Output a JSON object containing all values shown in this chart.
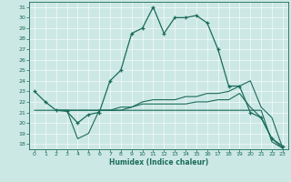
{
  "title": "",
  "xlabel": "Humidex (Indice chaleur)",
  "bg_color": "#cce8e4",
  "line_color": "#1a6b5a",
  "grid_color": "#ffffff",
  "bottom_bar_color": "#4a9a8a",
  "xlim": [
    -0.5,
    23.5
  ],
  "ylim": [
    17.5,
    31.5
  ],
  "xticks": [
    0,
    1,
    2,
    3,
    4,
    5,
    6,
    7,
    8,
    9,
    10,
    11,
    12,
    13,
    14,
    15,
    16,
    17,
    18,
    19,
    20,
    21,
    22,
    23
  ],
  "yticks": [
    18,
    19,
    20,
    21,
    22,
    23,
    24,
    25,
    26,
    27,
    28,
    29,
    30,
    31
  ],
  "line1_x": [
    0,
    1,
    2,
    3,
    4,
    5,
    6,
    7,
    8,
    9,
    10,
    11,
    12,
    13,
    14,
    15,
    16,
    17,
    18,
    19,
    20,
    21,
    22,
    23
  ],
  "line1_y": [
    23,
    22,
    21.2,
    21.1,
    20,
    20.8,
    21,
    24,
    25,
    28.5,
    29,
    31,
    28.5,
    30,
    30,
    30.2,
    29.5,
    27,
    23.5,
    23.5,
    21,
    20.5,
    18.5,
    17.8
  ],
  "line2_x": [
    2,
    3,
    4,
    5,
    6,
    7,
    8,
    9,
    10,
    11,
    12,
    13,
    14,
    15,
    16,
    17,
    18,
    19,
    20,
    21,
    22,
    23
  ],
  "line2_y": [
    21.2,
    21.2,
    18.5,
    19,
    21.2,
    21.2,
    21.2,
    21.2,
    21.2,
    21.2,
    21.2,
    21.2,
    21.2,
    21.2,
    21.2,
    21.2,
    21.2,
    21.2,
    21.2,
    21.2,
    18.2,
    17.6
  ],
  "line3_x": [
    0,
    1,
    2,
    3,
    4,
    5,
    6,
    7,
    8,
    9,
    10,
    11,
    12,
    13,
    14,
    15,
    16,
    17,
    18,
    19,
    20,
    21,
    22,
    23
  ],
  "line3_y": [
    21.2,
    21.2,
    21.2,
    21.2,
    21.2,
    21.2,
    21.2,
    21.2,
    21.5,
    21.5,
    21.8,
    21.8,
    21.8,
    21.8,
    21.8,
    22,
    22,
    22.2,
    22.2,
    22.8,
    21.5,
    20.5,
    18.5,
    17.6
  ],
  "line4_x": [
    2,
    3,
    4,
    5,
    6,
    7,
    8,
    9,
    10,
    11,
    12,
    13,
    14,
    15,
    16,
    17,
    18,
    19,
    20,
    21,
    22,
    23
  ],
  "line4_y": [
    21.2,
    21.2,
    21.2,
    21.2,
    21.2,
    21.2,
    21.2,
    21.5,
    22,
    22.2,
    22.2,
    22.2,
    22.5,
    22.5,
    22.8,
    22.8,
    23,
    23.5,
    24,
    21.5,
    20.5,
    17.6
  ]
}
